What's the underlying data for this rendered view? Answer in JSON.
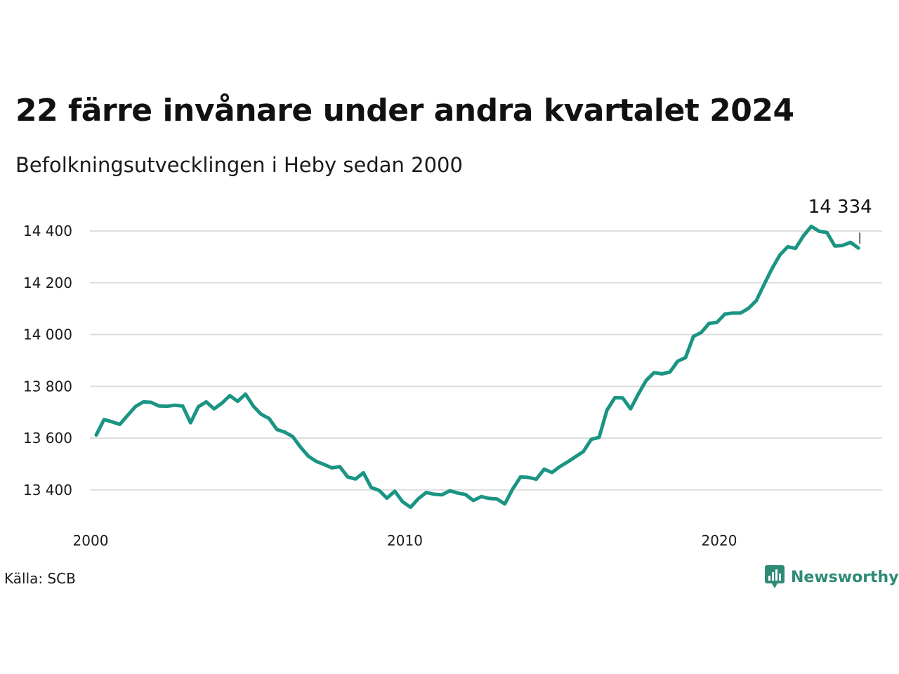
{
  "header": {
    "title": "22 färre invånare under andra kvartalet 2024",
    "subtitle": "Befolkningsutvecklingen i Heby sedan 2000"
  },
  "footer": {
    "source": "Källa: SCB",
    "brand": "Newsworthy",
    "brand_icon": "newsworthy-logo-icon"
  },
  "colors": {
    "line": "#1a9483",
    "grid": "#dddddd",
    "brand": "#2e8b75"
  },
  "chart_data": {
    "type": "line",
    "title": "22 färre invånare under andra kvartalet 2024",
    "subtitle": "Befolkningsutvecklingen i Heby sedan 2000",
    "xlabel": "",
    "ylabel": "",
    "x_start": 2000.0,
    "x_step": 0.25,
    "xlim": [
      2000,
      2025
    ],
    "ylim": [
      13260,
      14440
    ],
    "yticks": [
      13400,
      13600,
      13800,
      14000,
      14200,
      14400
    ],
    "ytick_labels": [
      "13 400",
      "13 600",
      "13 800",
      "14 000",
      "14 200",
      "14 400"
    ],
    "xticks": [
      2000,
      2010,
      2020
    ],
    "xtick_labels": [
      "2000",
      "2010",
      "2020"
    ],
    "grid": true,
    "annotation": {
      "label": "14 334",
      "value": 14334
    },
    "series": [
      {
        "values": [
          13612,
          13672,
          13663,
          13653,
          13688,
          13722,
          13740,
          13738,
          13724,
          13723,
          13727,
          13724,
          13659,
          13721,
          13740,
          13713,
          13735,
          13764,
          13742,
          13770,
          13723,
          13692,
          13676,
          13633,
          13623,
          13606,
          13565,
          13530,
          13510,
          13498,
          13485,
          13490,
          13450,
          13442,
          13466,
          13409,
          13398,
          13368,
          13395,
          13354,
          13333,
          13366,
          13390,
          13383,
          13381,
          13397,
          13388,
          13382,
          13359,
          13374,
          13367,
          13365,
          13346,
          13403,
          13450,
          13448,
          13441,
          13480,
          13467,
          13490,
          13508,
          13528,
          13548,
          13595,
          13603,
          13708,
          13756,
          13755,
          13713,
          13770,
          13823,
          13853,
          13848,
          13855,
          13897,
          13911,
          13993,
          14008,
          14043,
          14047,
          14079,
          14083,
          14083,
          14101,
          14131,
          14193,
          14254,
          14307,
          14339,
          14333,
          14381,
          14418,
          14399,
          14394,
          14342,
          14344,
          14356,
          14334
        ]
      }
    ]
  }
}
